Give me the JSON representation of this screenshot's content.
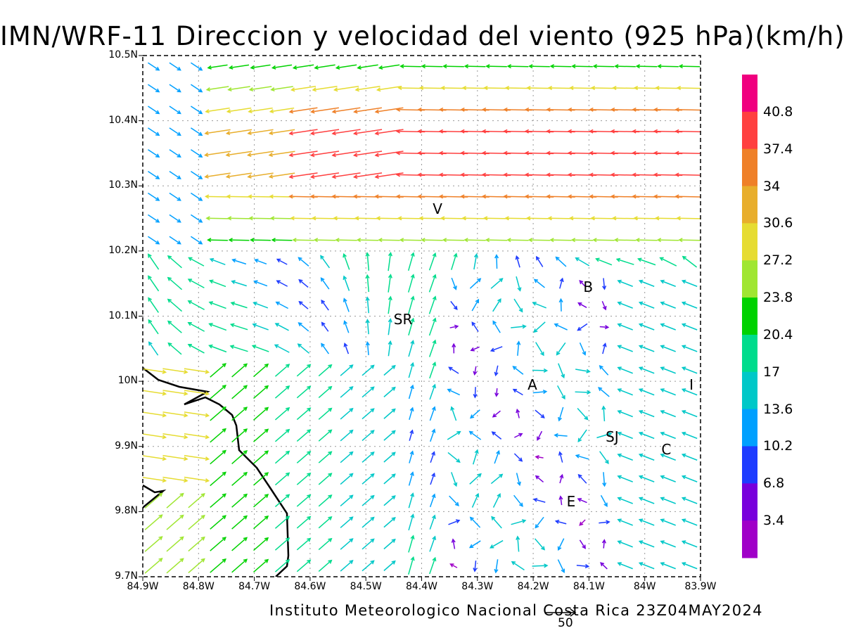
{
  "title": "IMN/WRF-11 Direccion y velocidad del viento (925 hPa)(km/h)",
  "credit": "Instituto Meteorologico Nacional Costa Rica 23Z04MAY2024",
  "reference_vector": {
    "label": "50",
    "value_kmh": 50
  },
  "map": {
    "lon_range": [
      -84.9,
      -83.9
    ],
    "lat_range": [
      9.7,
      10.5
    ],
    "lat_ticks": [
      "10.5N",
      "10.4N",
      "10.3N",
      "10.2N",
      "10.1N",
      "10N",
      "9.9N",
      "9.8N",
      "9.7N"
    ],
    "lon_ticks": [
      "84.9W",
      "84.8W",
      "84.7W",
      "84.6W",
      "84.5W",
      "84.4W",
      "84.3W",
      "84.2W",
      "84.1W",
      "84W",
      "83.9W"
    ],
    "grid": "dotted",
    "coastline_color": "#000000",
    "cities": [
      {
        "label": "V",
        "lon": -84.37,
        "lat": 10.265
      },
      {
        "label": "B",
        "lon": -84.1,
        "lat": 10.145
      },
      {
        "label": "SR",
        "lon": -84.44,
        "lat": 10.095
      },
      {
        "label": "A",
        "lon": -84.2,
        "lat": 9.995
      },
      {
        "label": "I",
        "lon": -83.91,
        "lat": 9.995
      },
      {
        "label": "SJ",
        "lon": -84.06,
        "lat": 9.915
      },
      {
        "label": "C",
        "lon": -83.96,
        "lat": 9.895
      },
      {
        "label": "E",
        "lon": -84.13,
        "lat": 9.815
      }
    ]
  },
  "colorbar": {
    "labels": [
      "40.8",
      "37.4",
      "34",
      "30.6",
      "27.2",
      "23.8",
      "20.4",
      "17",
      "13.6",
      "10.2",
      "6.8",
      "3.4"
    ],
    "colors": [
      "#f0007f",
      "#ff4040",
      "#ef8028",
      "#e8ae2c",
      "#e6dc32",
      "#a0e632",
      "#00d200",
      "#00dc8c",
      "#00c8c8",
      "#00a0ff",
      "#1e3cff",
      "#7800dc",
      "#a000c8"
    ]
  }
}
